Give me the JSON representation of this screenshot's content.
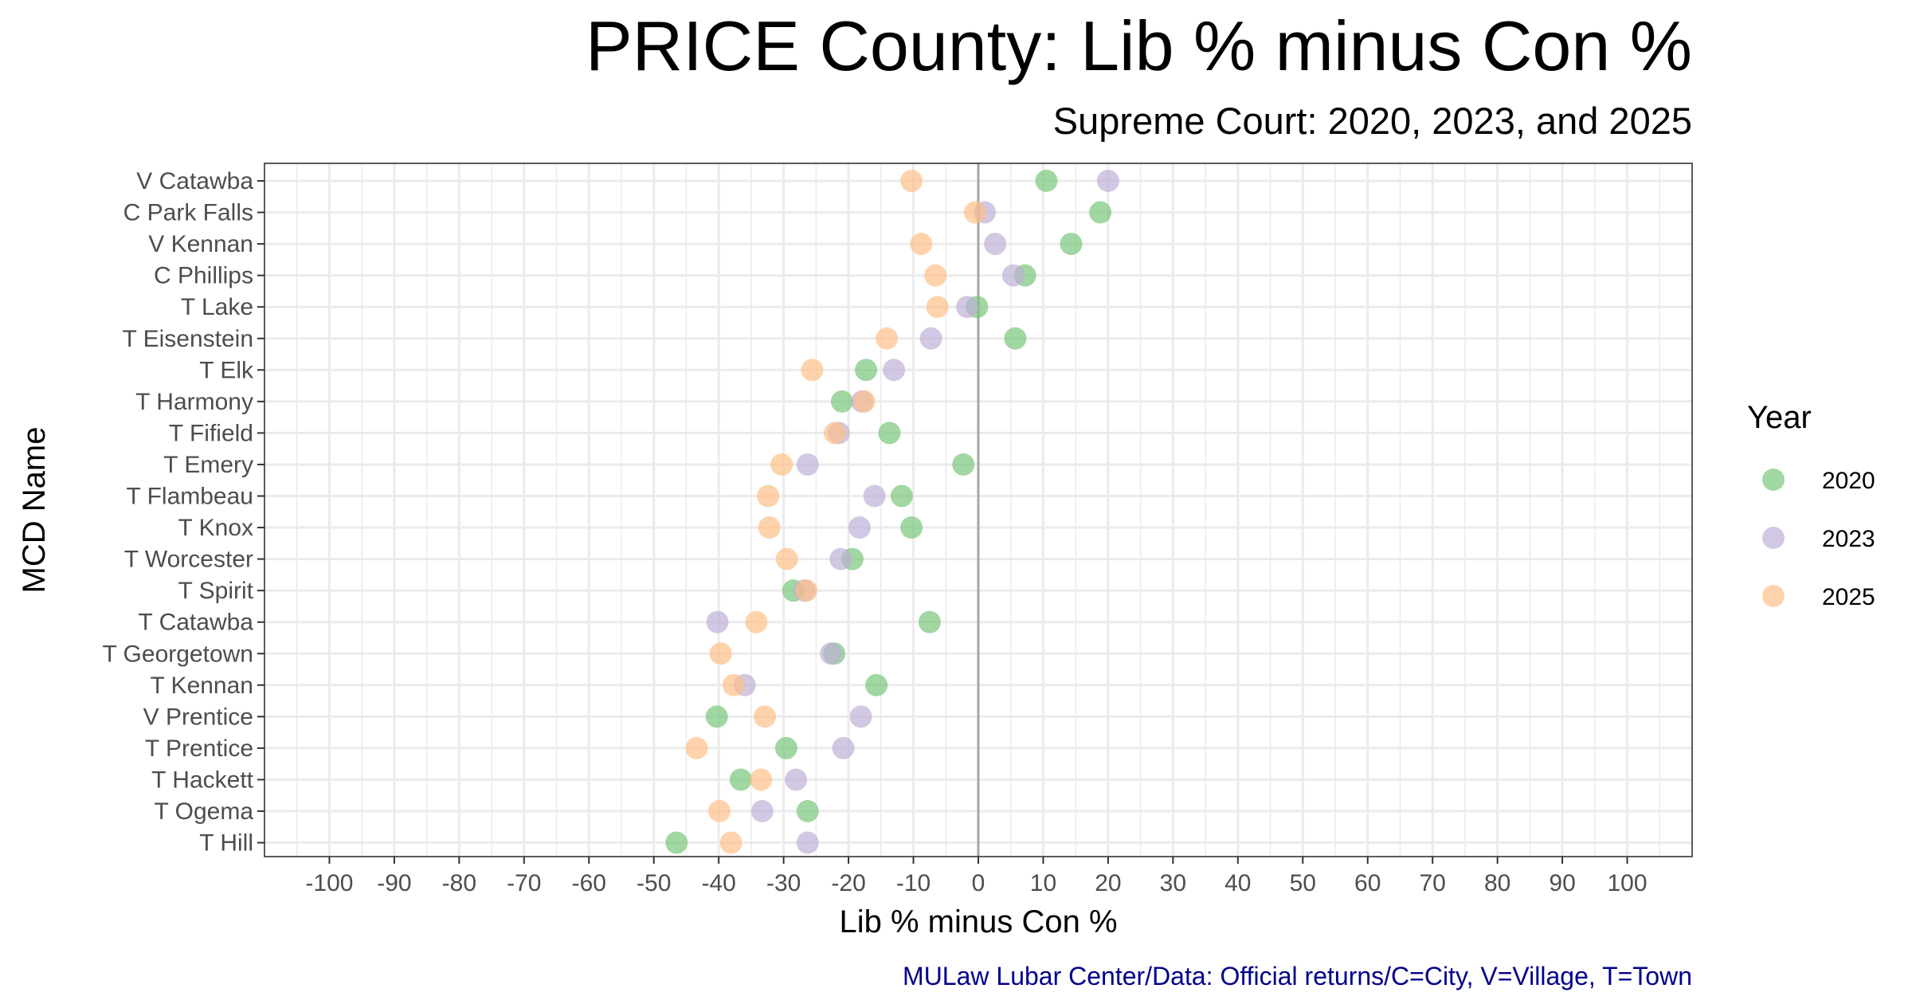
{
  "chart_data": {
    "type": "scatter",
    "title": "PRICE County: Lib % minus Con %",
    "subtitle": "Supreme Court: 2020, 2023, and 2025",
    "xlabel": "Lib % minus Con %",
    "ylabel": "MCD Name",
    "caption": "MULaw Lubar Center/Data: Official returns/C=City, V=Village, T=Town",
    "xlim": [
      -110,
      110
    ],
    "x_ticks": [
      -100,
      -90,
      -80,
      -70,
      -60,
      -50,
      -40,
      -30,
      -20,
      -10,
      0,
      10,
      20,
      30,
      40,
      50,
      60,
      70,
      80,
      90,
      100
    ],
    "grid": true,
    "reference_line": 0,
    "legend": {
      "title": "Year",
      "position": "right"
    },
    "categories": [
      "V Catawba",
      "C Park Falls",
      "V Kennan",
      "C Phillips",
      "T Lake",
      "T Eisenstein",
      "T Elk",
      "T Harmony",
      "T Fifield",
      "T Emery",
      "T Flambeau",
      "T Knox",
      "T Worcester",
      "T Spirit",
      "T Catawba",
      "T Georgetown",
      "T Kennan",
      "V Prentice",
      "T Prentice",
      "T Hackett",
      "T Ogema",
      "T Hill"
    ],
    "series": [
      {
        "name": "2020",
        "color": "#74c476",
        "values": [
          10.5,
          18.8,
          14.3,
          7.2,
          -0.2,
          5.7,
          -17.3,
          -21.0,
          -13.7,
          -2.3,
          -11.8,
          -10.3,
          -19.4,
          -28.5,
          -7.5,
          -22.2,
          -15.7,
          -40.3,
          -29.6,
          -36.6,
          -26.3,
          -46.5
        ]
      },
      {
        "name": "2023",
        "color": "#bcaed6",
        "values": [
          20.0,
          1.0,
          2.6,
          5.4,
          -1.7,
          -7.3,
          -13.0,
          -17.9,
          -21.5,
          -26.3,
          -16.0,
          -18.3,
          -21.2,
          -26.8,
          -40.2,
          -22.7,
          -36.0,
          -18.1,
          -20.8,
          -28.1,
          -33.3,
          -26.3
        ]
      },
      {
        "name": "2025",
        "color": "#fdbe85",
        "values": [
          -10.3,
          -0.5,
          -8.8,
          -6.6,
          -6.3,
          -14.1,
          -25.6,
          -17.6,
          -22.1,
          -30.3,
          -32.4,
          -32.2,
          -29.5,
          -26.5,
          -34.2,
          -39.7,
          -37.7,
          -32.9,
          -43.4,
          -33.5,
          -39.9,
          -38.1
        ]
      }
    ]
  }
}
